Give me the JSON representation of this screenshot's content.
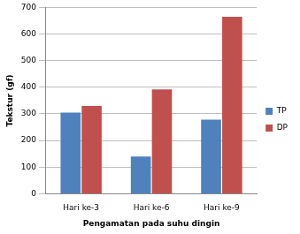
{
  "chart_data": {
    "type": "bar",
    "x_label": "Pengamatan pada suhu dingin",
    "y_label": "Tekstur (gf)",
    "categories": [
      "Hari ke-3",
      "Hari ke-6",
      "Hari ke-9"
    ],
    "series": [
      {
        "name": "TP",
        "color": "#4f81bd",
        "values": [
          305,
          140,
          278
        ]
      },
      {
        "name": "DP",
        "color": "#c0504d",
        "values": [
          330,
          392,
          665
        ]
      }
    ],
    "ylim": [
      0,
      700
    ],
    "yticks": [
      0,
      100,
      200,
      300,
      400,
      500,
      600,
      700
    ],
    "grid": true,
    "legend": "right"
  }
}
